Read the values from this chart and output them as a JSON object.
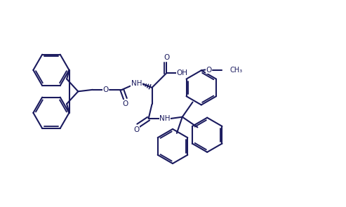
{
  "background_color": "#ffffff",
  "line_color": "#1a1a5e",
  "line_width": 1.5,
  "figsize": [
    4.93,
    2.95
  ],
  "dpi": 100,
  "xlim": [
    0,
    10
  ],
  "ylim": [
    0,
    6
  ]
}
